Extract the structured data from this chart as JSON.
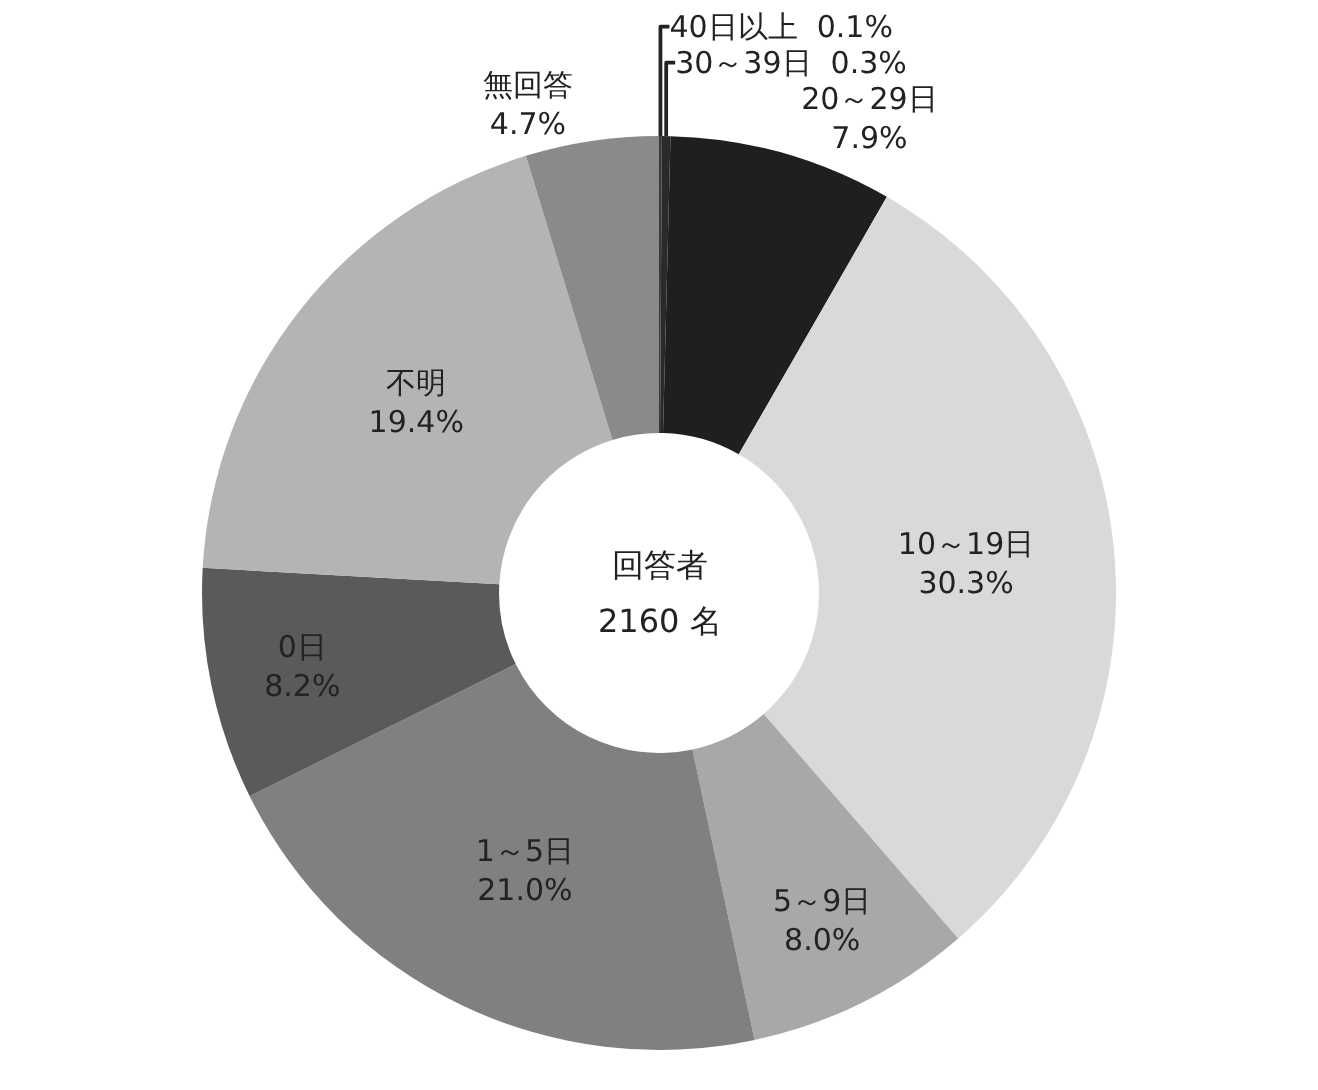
{
  "chart_data": {
    "type": "donut",
    "categories": [
      "40日以上",
      "30～39日",
      "20～29日",
      "10～19日",
      "5～9日",
      "1～5日",
      "0日",
      "不明",
      "無回答"
    ],
    "values": [
      0.1,
      0.3,
      7.9,
      30.3,
      8.0,
      21.0,
      8.2,
      19.4,
      4.7
    ],
    "value_labels": [
      "0.1%",
      "0.3%",
      "7.9%",
      "30.3%",
      "8.0%",
      "21.0%",
      "8.2%",
      "19.4%",
      "4.7%"
    ],
    "colors": [
      "#3a3a3a",
      "#2a2a2a",
      "#1f1f1f",
      "#d9d9d9",
      "#a8a8a8",
      "#808080",
      "#5a5a5a",
      "#b4b4b4",
      "#8a8a8a"
    ],
    "annotations": [
      "回答者",
      "2160 名"
    ],
    "legend": false
  }
}
